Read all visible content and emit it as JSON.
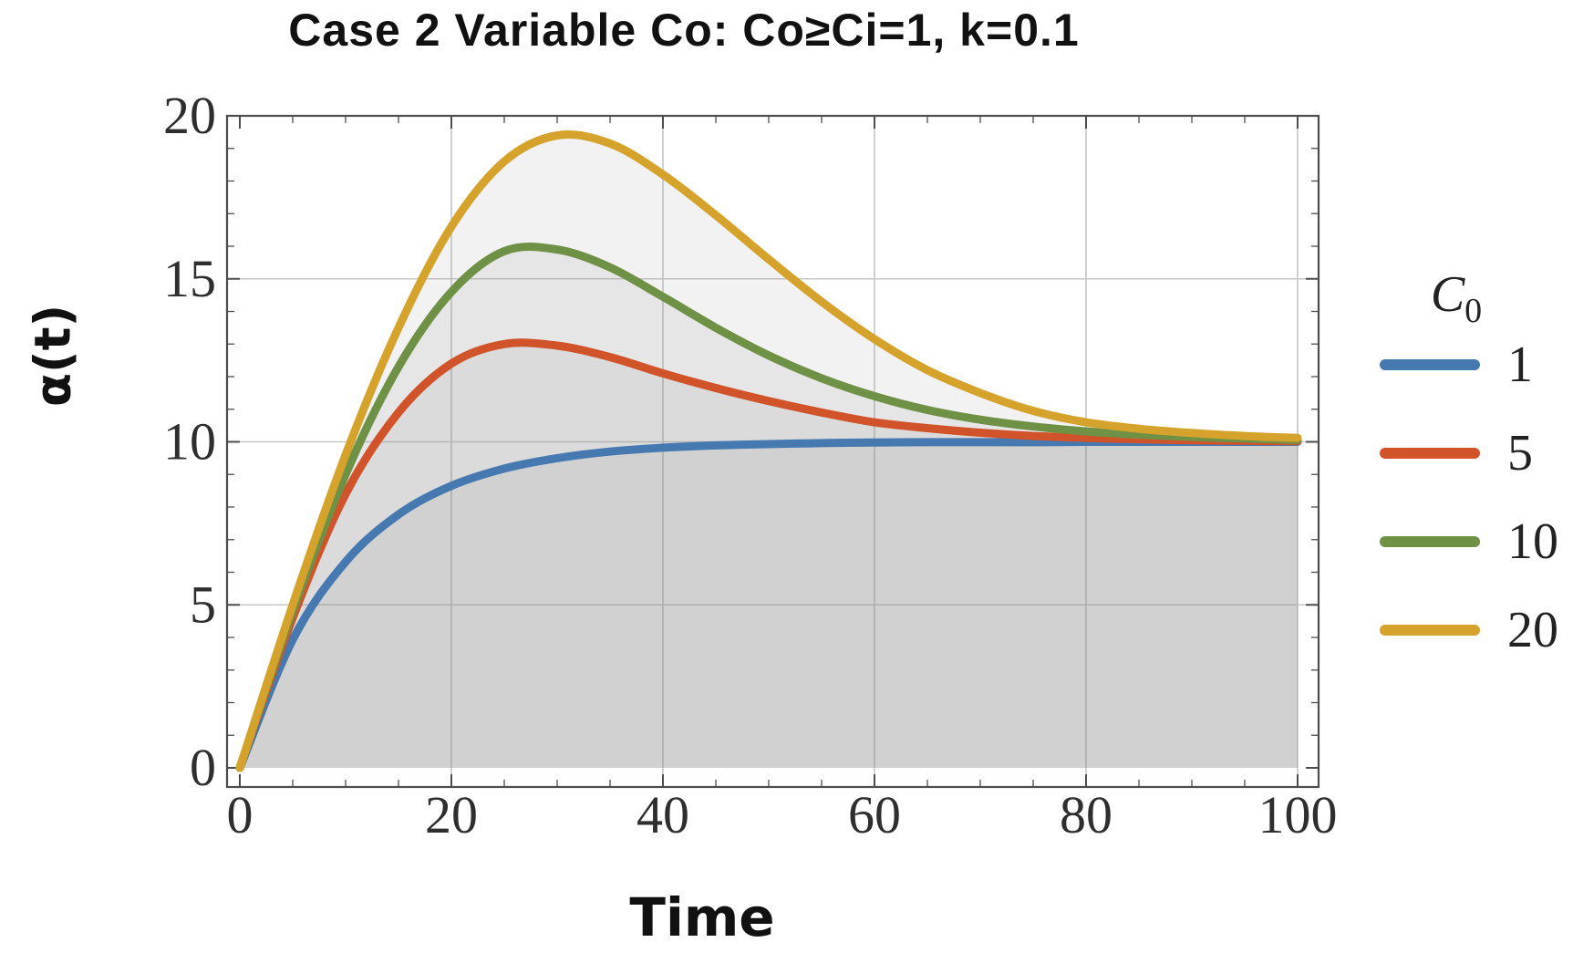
{
  "title": "Case 2 Variable Co: Co≥Ci=1, k=0.1",
  "axes": {
    "x_label": "Time",
    "y_label": "α(t)",
    "x_ticks": [
      0,
      20,
      40,
      60,
      80,
      100
    ],
    "y_ticks": [
      0,
      5,
      10,
      15,
      20
    ]
  },
  "legend": {
    "symbol": "C",
    "subscript": "0",
    "entries": [
      {
        "label": "1",
        "color": "#4679B0"
      },
      {
        "label": "5",
        "color": "#D0532A"
      },
      {
        "label": "10",
        "color": "#6E9145"
      },
      {
        "label": "20",
        "color": "#D5A32B"
      }
    ]
  },
  "chart_data": {
    "type": "line",
    "title": "Case 2 Variable Co: Co≥Ci=1, k=0.1",
    "xlabel": "Time",
    "ylabel": "α(t)",
    "xlim": [
      0,
      100
    ],
    "ylim": [
      0,
      20
    ],
    "grid": true,
    "frame": true,
    "legend_position": "right-outside",
    "filling": "each curve filled to y=0 with stacked translucent gray",
    "x_gridlines": [
      20,
      40,
      60,
      80,
      100
    ],
    "y_gridlines": [
      5,
      10,
      15,
      20
    ],
    "x_minor_step": 5,
    "y_minor_step": 1,
    "x": [
      0,
      5,
      10,
      15,
      20,
      25,
      30,
      35,
      40,
      45,
      50,
      55,
      60,
      65,
      70,
      75,
      80,
      85,
      90,
      95,
      100
    ],
    "series": [
      {
        "name": "1",
        "color": "#4679B0",
        "values": [
          0,
          3.93,
          6.32,
          7.77,
          8.65,
          9.18,
          9.5,
          9.7,
          9.82,
          9.89,
          9.93,
          9.96,
          9.98,
          9.99,
          9.99,
          9.99,
          10.0,
          10.0,
          10.0,
          10.0,
          10.0
        ]
      },
      {
        "name": "5",
        "color": "#D0532A",
        "values": [
          0,
          4.6,
          8.4,
          10.9,
          12.4,
          13.0,
          12.95,
          12.6,
          12.1,
          11.65,
          11.25,
          10.9,
          10.6,
          10.42,
          10.28,
          10.18,
          10.12,
          10.08,
          10.05,
          10.03,
          10.02
        ]
      },
      {
        "name": "10",
        "color": "#6E9145",
        "values": [
          0,
          4.8,
          9.0,
          12.3,
          14.6,
          15.85,
          15.9,
          15.35,
          14.45,
          13.5,
          12.65,
          11.95,
          11.4,
          10.98,
          10.68,
          10.47,
          10.32,
          10.22,
          10.15,
          10.1,
          10.06
        ]
      },
      {
        "name": "20",
        "color": "#D5A32B",
        "values": [
          0,
          5.0,
          9.6,
          13.5,
          16.6,
          18.6,
          19.4,
          19.15,
          18.2,
          16.95,
          15.6,
          14.3,
          13.15,
          12.2,
          11.5,
          10.95,
          10.6,
          10.4,
          10.27,
          10.18,
          10.12
        ]
      }
    ]
  }
}
